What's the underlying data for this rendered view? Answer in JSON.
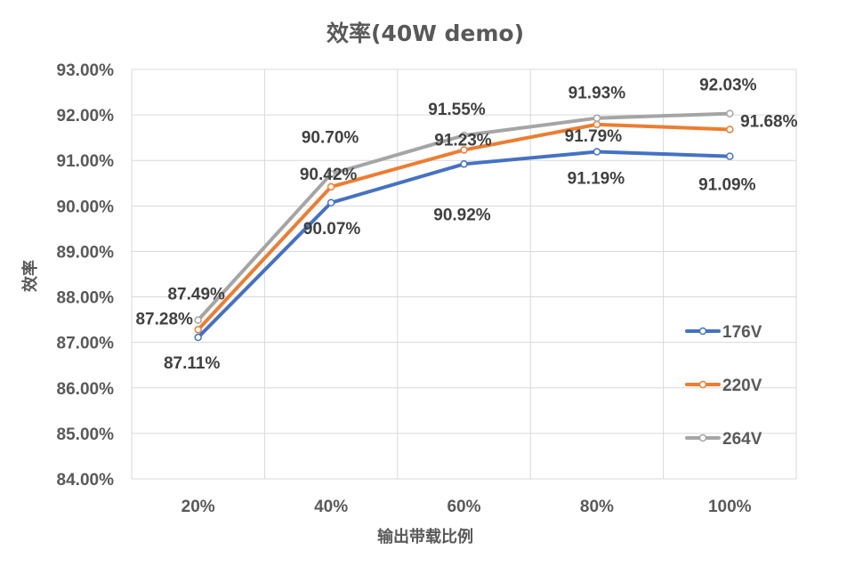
{
  "chart_data": {
    "type": "line",
    "title": "效率(40W demo)",
    "xlabel": "输出带载比例",
    "ylabel": "效率",
    "categories": [
      "20%",
      "40%",
      "60%",
      "80%",
      "100%"
    ],
    "ylim": [
      84.0,
      93.0
    ],
    "ytick_step": 1.0,
    "ytick_labels": [
      "84.00%",
      "85.00%",
      "86.00%",
      "87.00%",
      "88.00%",
      "89.00%",
      "90.00%",
      "91.00%",
      "92.00%",
      "93.00%"
    ],
    "grid": true,
    "legend_position": "right",
    "series": [
      {
        "name": "176V",
        "color": "#4472C4",
        "values": [
          87.11,
          90.07,
          90.92,
          91.19,
          91.09
        ],
        "labels": [
          "87.11%",
          "90.07%",
          "90.92%",
          "91.19%",
          "91.09%"
        ]
      },
      {
        "name": "220V",
        "color": "#ED7D31",
        "values": [
          87.28,
          90.42,
          91.23,
          91.79,
          91.68
        ],
        "labels": [
          "87.28%",
          "90.42%",
          "91.23%",
          "91.79%",
          "91.68%"
        ]
      },
      {
        "name": "264V",
        "color": "#A5A5A5",
        "values": [
          87.49,
          90.7,
          91.55,
          91.93,
          92.03
        ],
        "labels": [
          "87.49%",
          "90.70%",
          "91.55%",
          "91.93%",
          "92.03%"
        ]
      }
    ]
  }
}
